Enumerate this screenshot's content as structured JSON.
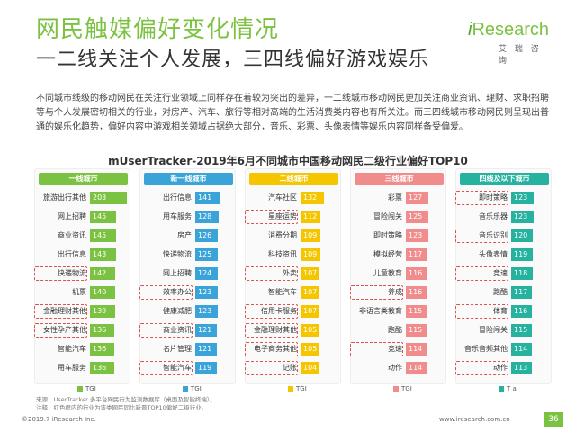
{
  "title": "网民触媒偏好变化情况",
  "subtitle": "一二线关注个人发展，三四线偏好游戏娱乐",
  "logo": {
    "brand_i": "i",
    "brand_rest": "Research",
    "cn": "艾 瑞 咨 询"
  },
  "paragraph": "不同城市线级的移动网民在关注行业领域上同样存在着较为突出的差异，一二线城市移动网民更加关注商业资讯、理财、求职招聘等与个人发展密切相关的行业，对房产、汽车、旅行等相对高端的生活消费类内容也有所关注。而三四线城市移动网民则呈现出普通的娱乐化趋势，偏好内容中游戏相关领域占据绝大部分，音乐、彩票、头像表情等娱乐内容同样备受偏爱。",
  "chart_data": {
    "type": "bar",
    "title": "mUserTracker-2019年6月不同城市中国移动网民二级行业偏好TOP10",
    "xmax": 220,
    "panels": [
      {
        "name": "一线城市",
        "color": "#7cc242",
        "legend": "TGI",
        "items": [
          {
            "label": "旅游出行其他",
            "value": 203,
            "hl": false
          },
          {
            "label": "网上招聘",
            "value": 145,
            "hl": false
          },
          {
            "label": "商业资讯",
            "value": 145,
            "hl": false
          },
          {
            "label": "出行信息",
            "value": 143,
            "hl": false
          },
          {
            "label": "快递物流",
            "value": 142,
            "hl": true
          },
          {
            "label": "机票",
            "value": 140,
            "hl": false
          },
          {
            "label": "金融理财其他",
            "value": 139,
            "hl": true
          },
          {
            "label": "女性孕产其他",
            "value": 136,
            "hl": true
          },
          {
            "label": "智能汽车",
            "value": 136,
            "hl": false
          },
          {
            "label": "用车服务",
            "value": 136,
            "hl": false
          }
        ]
      },
      {
        "name": "新一线城市",
        "color": "#3aa4d8",
        "legend": "TGI",
        "items": [
          {
            "label": "出行信息",
            "value": 141,
            "hl": false
          },
          {
            "label": "用车服务",
            "value": 128,
            "hl": false
          },
          {
            "label": "房产",
            "value": 126,
            "hl": false
          },
          {
            "label": "快递物流",
            "value": 125,
            "hl": false
          },
          {
            "label": "网上招聘",
            "value": 124,
            "hl": false
          },
          {
            "label": "效率办公",
            "value": 123,
            "hl": true
          },
          {
            "label": "健康减肥",
            "value": 123,
            "hl": false
          },
          {
            "label": "商业资讯",
            "value": 121,
            "hl": true
          },
          {
            "label": "名片管理",
            "value": 121,
            "hl": false
          },
          {
            "label": "智能汽车",
            "value": 119,
            "hl": true
          }
        ]
      },
      {
        "name": "二线城市",
        "color": "#f5c500",
        "legend": "TGI",
        "items": [
          {
            "label": "汽车社区",
            "value": 132,
            "hl": false
          },
          {
            "label": "星座运势",
            "value": 112,
            "hl": true
          },
          {
            "label": "消费分期",
            "value": 109,
            "hl": false
          },
          {
            "label": "科技资讯",
            "value": 109,
            "hl": false
          },
          {
            "label": "外卖",
            "value": 107,
            "hl": true
          },
          {
            "label": "智能汽车",
            "value": 107,
            "hl": false
          },
          {
            "label": "信用卡服务",
            "value": 107,
            "hl": true
          },
          {
            "label": "金融理财其他",
            "value": 105,
            "hl": true
          },
          {
            "label": "电子商务其他",
            "value": 105,
            "hl": true
          },
          {
            "label": "记账",
            "value": 104,
            "hl": true
          }
        ]
      },
      {
        "name": "三线城市",
        "color": "#f08c8c",
        "legend": "TGI",
        "items": [
          {
            "label": "彩票",
            "value": 127,
            "hl": false
          },
          {
            "label": "冒险闯关",
            "value": 125,
            "hl": false
          },
          {
            "label": "即时策略",
            "value": 123,
            "hl": false
          },
          {
            "label": "模拟经营",
            "value": 117,
            "hl": false
          },
          {
            "label": "儿童教育",
            "value": 116,
            "hl": false
          },
          {
            "label": "养成",
            "value": 116,
            "hl": true
          },
          {
            "label": "非语言类教育",
            "value": 115,
            "hl": false
          },
          {
            "label": "跑酷",
            "value": 115,
            "hl": false
          },
          {
            "label": "竞速",
            "value": 114,
            "hl": true
          },
          {
            "label": "动作",
            "value": 114,
            "hl": false
          }
        ]
      },
      {
        "name": "四线及以下城市",
        "color": "#27b2a0",
        "legend": "T a",
        "items": [
          {
            "label": "即时策略",
            "value": 123,
            "hl": true
          },
          {
            "label": "音乐乐器",
            "value": 123,
            "hl": false
          },
          {
            "label": "音乐识别",
            "value": 120,
            "hl": true
          },
          {
            "label": "头像表情",
            "value": 119,
            "hl": false
          },
          {
            "label": "竞速",
            "value": 118,
            "hl": true
          },
          {
            "label": "跑酷",
            "value": 117,
            "hl": false
          },
          {
            "label": "体育",
            "value": 116,
            "hl": true
          },
          {
            "label": "冒险闯关",
            "value": 115,
            "hl": false
          },
          {
            "label": "音乐音频其他",
            "value": 114,
            "hl": false
          },
          {
            "label": "动作",
            "value": 113,
            "hl": true
          }
        ]
      }
    ]
  },
  "source_note": "来源：UserTracker 多平台网民行为监测数据库（桌面及智能终端）。\n注释：红色框内的行业为该类网民同比新晋TOP10偏好二级行业。",
  "footer": {
    "copyright": "©2019.7 iResearch Inc.",
    "website": "www.iresearch.com.cn",
    "page": "36"
  }
}
